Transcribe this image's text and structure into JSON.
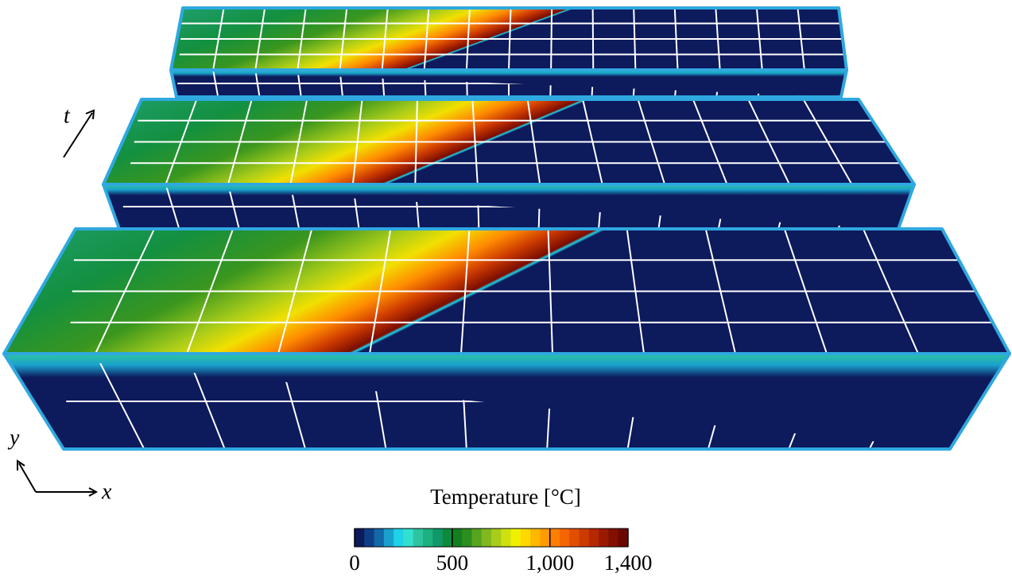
{
  "axis_labels": {
    "t": "t",
    "y": "y",
    "x": "x"
  },
  "colorbar": {
    "title": "Temperature [°C]",
    "lim": [
      0,
      1400
    ],
    "ticks": [
      0,
      500,
      {
        "value": 1000,
        "label": "1,000"
      },
      {
        "value": 1400,
        "label": "1,400"
      }
    ],
    "colors": [
      "#0d1a5c",
      "#0e3f86",
      "#1368a8",
      "#1aa0cc",
      "#1fd2e8",
      "#33e0d0",
      "#2ec4a0",
      "#1fb080",
      "#109868",
      "#0e8a3e",
      "#157f20",
      "#2b8e1e",
      "#56a41f",
      "#80b81e",
      "#a8cc1a",
      "#cfe010",
      "#f1f000",
      "#ffd800",
      "#ffb800",
      "#ff9a00",
      "#ff7e00",
      "#f56500",
      "#e24e00",
      "#cc3a00",
      "#b52800",
      "#9a1a00",
      "#821000",
      "#6a0800"
    ]
  }
}
